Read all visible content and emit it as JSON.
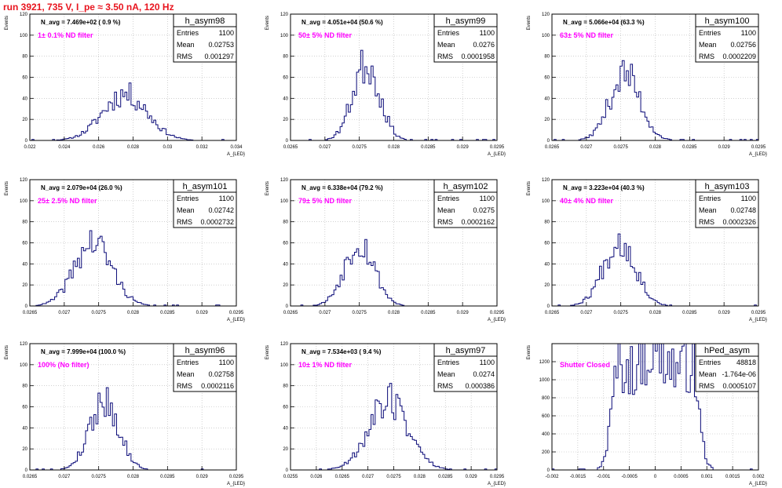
{
  "header": {
    "title": "run 3921,   735 V, I_pe ≈ 3.50 nA, 120 Hz"
  },
  "colors": {
    "histogram": "#0a0a78",
    "filter_label": "#ff00ff",
    "title_red": "#e8141e",
    "grid": "#b4b4b4"
  },
  "axis_labels": {
    "y": "Events",
    "x": "A_{LED}"
  },
  "stats_labels": {
    "entries": "Entries",
    "mean": "Mean",
    "rms": "RMS"
  },
  "chart_data": [
    {
      "type": "histogram",
      "name": "h_asym98",
      "navg": "N_avg = 7.469e+02 ( 0.9 %)",
      "filter": "1± 0.1% ND filter",
      "entries": "1100",
      "mean": "0.02753",
      "rms": "0.001297",
      "xlim": [
        0.022,
        0.034
      ],
      "ylim": [
        0,
        120
      ],
      "xticks": [
        0.022,
        0.024,
        0.026,
        0.028,
        0.03,
        0.032,
        0.034
      ],
      "xtick_labels": [
        "0.022",
        "0.024",
        "0.026",
        "0.028",
        "0.03",
        "0.032",
        "0.034"
      ],
      "yticks": [
        0,
        20,
        40,
        60,
        80,
        100,
        120
      ],
      "mu": 0.02753,
      "sigma": 0.001297,
      "peak": 44,
      "seed": 11
    },
    {
      "type": "histogram",
      "name": "h_asym99",
      "navg": "N_avg = 4.051e+04 (50.6 %)",
      "filter": "50± 5% ND filter",
      "entries": "1100",
      "mean": "0.0276",
      "rms": "0.0001958",
      "xlim": [
        0.0265,
        0.0295
      ],
      "ylim": [
        0,
        120
      ],
      "xticks": [
        0.0265,
        0.027,
        0.0275,
        0.028,
        0.0285,
        0.029,
        0.0295
      ],
      "xtick_labels": [
        "0.0265",
        "0.027",
        "0.0275",
        "0.028",
        "0.0285",
        "0.029",
        "0.0295"
      ],
      "yticks": [
        0,
        20,
        40,
        60,
        80,
        100,
        120
      ],
      "mu": 0.0276,
      "sigma": 0.0001958,
      "peak": 73,
      "seed": 23
    },
    {
      "type": "histogram",
      "name": "h_asym100",
      "navg": "N_avg = 5.066e+04 (63.3 %)",
      "filter": "63± 5% ND filter",
      "entries": "1100",
      "mean": "0.02756",
      "rms": "0.0002209",
      "xlim": [
        0.0265,
        0.0295
      ],
      "ylim": [
        0,
        120
      ],
      "xticks": [
        0.0265,
        0.027,
        0.0275,
        0.028,
        0.0285,
        0.029,
        0.0295
      ],
      "xtick_labels": [
        "0.0265",
        "0.027",
        "0.0275",
        "0.028",
        "0.0285",
        "0.029",
        "0.0295"
      ],
      "yticks": [
        0,
        20,
        40,
        60,
        80,
        100,
        120
      ],
      "mu": 0.02756,
      "sigma": 0.0002209,
      "peak": 63,
      "seed": 37
    },
    {
      "type": "histogram",
      "name": "h_asym101",
      "navg": "N_avg = 2.079e+04 (26.0 %)",
      "filter": "25± 2.5% ND filter",
      "entries": "1100",
      "mean": "0.02742",
      "rms": "0.0002732",
      "xlim": [
        0.0265,
        0.0295
      ],
      "ylim": [
        0,
        120
      ],
      "xticks": [
        0.0265,
        0.027,
        0.0275,
        0.028,
        0.0285,
        0.029,
        0.0295
      ],
      "xtick_labels": [
        "0.0265",
        "0.027",
        "0.0275",
        "0.028",
        "0.0285",
        "0.029",
        "0.0295"
      ],
      "yticks": [
        0,
        20,
        40,
        60,
        80,
        100,
        120
      ],
      "mu": 0.02742,
      "sigma": 0.0002732,
      "peak": 60,
      "seed": 41
    },
    {
      "type": "histogram",
      "name": "h_asym102",
      "navg": "N_avg = 6.338e+04 (79.2 %)",
      "filter": "79± 5% ND filter",
      "entries": "1100",
      "mean": "0.0275",
      "rms": "0.0002162",
      "xlim": [
        0.0265,
        0.0295
      ],
      "ylim": [
        0,
        120
      ],
      "xticks": [
        0.0265,
        0.027,
        0.0275,
        0.028,
        0.0285,
        0.029,
        0.0295
      ],
      "xtick_labels": [
        "0.0265",
        "0.027",
        "0.0275",
        "0.028",
        "0.0285",
        "0.029",
        "0.0295"
      ],
      "yticks": [
        0,
        20,
        40,
        60,
        80,
        100,
        120
      ],
      "mu": 0.0275,
      "sigma": 0.0002162,
      "peak": 61,
      "seed": 53
    },
    {
      "type": "histogram",
      "name": "h_asym103",
      "navg": "N_avg = 3.223e+04 (40.3 %)",
      "filter": "40± 4% ND filter",
      "entries": "1100",
      "mean": "0.02748",
      "rms": "0.0002326",
      "xlim": [
        0.0265,
        0.0295
      ],
      "ylim": [
        0,
        120
      ],
      "xticks": [
        0.0265,
        0.027,
        0.0275,
        0.028,
        0.0285,
        0.029,
        0.0295
      ],
      "xtick_labels": [
        "0.0265",
        "0.027",
        "0.0275",
        "0.028",
        "0.0285",
        "0.029",
        "0.0295"
      ],
      "yticks": [
        0,
        20,
        40,
        60,
        80,
        100,
        120
      ],
      "mu": 0.02748,
      "sigma": 0.0002326,
      "peak": 62,
      "seed": 67
    },
    {
      "type": "histogram",
      "name": "h_asym96",
      "navg": "N_avg = 7.999e+04 (100.0 %)",
      "filter": "100% (No filter)",
      "entries": "1100",
      "mean": "0.02758",
      "rms": "0.0002116",
      "xlim": [
        0.0265,
        0.0295
      ],
      "ylim": [
        0,
        120
      ],
      "xticks": [
        0.0265,
        0.027,
        0.0275,
        0.028,
        0.0285,
        0.029,
        0.0295
      ],
      "xtick_labels": [
        "0.0265",
        "0.027",
        "0.0275",
        "0.028",
        "0.0285",
        "0.029",
        "0.0295"
      ],
      "yticks": [
        0,
        20,
        40,
        60,
        80,
        100,
        120
      ],
      "mu": 0.02758,
      "sigma": 0.0002116,
      "peak": 66,
      "seed": 79
    },
    {
      "type": "histogram",
      "name": "h_asym97",
      "navg": "N_avg = 7.534e+03 ( 9.4 %)",
      "filter": "10± 1% ND filter",
      "entries": "1100",
      "mean": "0.0274",
      "rms": "0.000386",
      "xlim": [
        0.0255,
        0.0295
      ],
      "ylim": [
        0,
        120
      ],
      "xticks": [
        0.0255,
        0.026,
        0.0265,
        0.027,
        0.0275,
        0.028,
        0.0285,
        0.029,
        0.0295
      ],
      "xtick_labels": [
        "0.0255",
        "0.026",
        "0.0265",
        "0.027",
        "0.0275",
        "0.028",
        "0.0285",
        "0.029",
        "0.0295"
      ],
      "yticks": [
        0,
        20,
        40,
        60,
        80,
        100,
        120
      ],
      "mu": 0.0274,
      "sigma": 0.000386,
      "peak": 66,
      "seed": 89
    },
    {
      "type": "histogram",
      "name": "hPed_asym",
      "navg": "",
      "filter": "Shutter Closed",
      "entries": "48818",
      "mean": "-1.764e-06",
      "rms": "0.0005107",
      "xlim": [
        -0.002,
        0.002
      ],
      "ylim": [
        0,
        1400
      ],
      "xticks": [
        -0.002,
        -0.0015,
        -0.001,
        -0.0005,
        0,
        0.0005,
        0.001,
        0.0015,
        0.002
      ],
      "xtick_labels": [
        "-0.002",
        "-0.0015",
        "-0.001",
        "-0.0005",
        "0",
        "0.0005",
        "0.001",
        "0.0015",
        "0.002"
      ],
      "yticks": [
        0,
        200,
        400,
        600,
        800,
        1000,
        1200
      ],
      "mu": 0,
      "sigma": 0.0005107,
      "peak": 1320,
      "seed": 97,
      "flat": true
    }
  ]
}
